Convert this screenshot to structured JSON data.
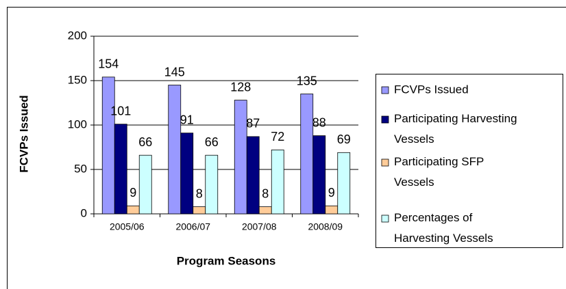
{
  "chart_data": {
    "type": "bar",
    "y_label": "FCVPs Issued",
    "x_label": "Program Seasons",
    "categories": [
      "2005/06",
      "2006/07",
      "2007/08",
      "2008/09"
    ],
    "series": [
      {
        "name": "FCVPs Issued",
        "color": "#9999ff",
        "values": [
          154,
          145,
          128,
          135
        ]
      },
      {
        "name": "Participating Harvesting Vessels",
        "color": "#000080",
        "values": [
          101,
          91,
          87,
          88
        ]
      },
      {
        "name": "Participating SFP Vessels",
        "color": "#ffcc99",
        "values": [
          9,
          8,
          8,
          9
        ]
      },
      {
        "name": "Percentages of Harvesting Vessels",
        "color": "#ccffff",
        "values": [
          66,
          66,
          72,
          69
        ]
      }
    ],
    "ylim": [
      0,
      200
    ],
    "yticks": [
      0,
      50,
      100,
      150,
      200
    ],
    "grid": true,
    "legend": "right"
  }
}
